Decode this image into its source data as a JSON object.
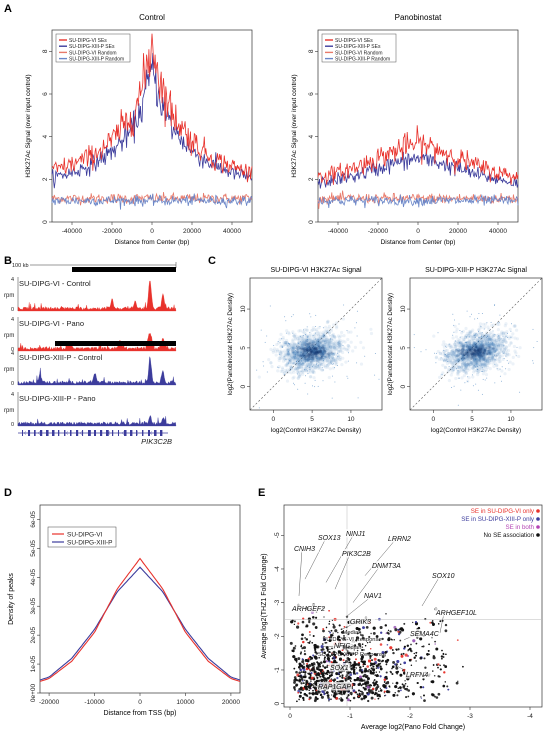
{
  "panel_labels": {
    "A": "A",
    "B": "B",
    "C": "C",
    "D": "D",
    "E": "E"
  },
  "colors": {
    "red": "#e8322c",
    "blue": "#3c3c9c",
    "lightred": "#e87a6a",
    "lightblue": "#6a86c8",
    "scatter": "#2a6fb5",
    "grey": "#c8c8c8"
  },
  "chart_data": [
    {
      "panel": "A-left",
      "type": "line",
      "title": "Control",
      "xlabel": "Distance from Center (bp)",
      "ylabel": "H3K27Ac Signal (over input control)",
      "xlim": [
        -50000,
        50000
      ],
      "ylim": [
        0,
        9
      ],
      "xticks": [
        "-40000",
        "-20000",
        "0",
        "20000",
        "40000"
      ],
      "yticks": [
        "0",
        "2",
        "4",
        "6",
        "8"
      ],
      "legend": [
        "SU-DIPG-VI SEs",
        "SU-DIPG-XIII-P SEs",
        "SU-DIPG-VI Random",
        "SU-DIPG-XIII-P Random"
      ],
      "legend_position": "top-left",
      "series": [
        {
          "name": "SU-DIPG-VI SEs",
          "x": [
            -50000,
            -40000,
            -30000,
            -20000,
            -10000,
            -5000,
            0,
            5000,
            10000,
            20000,
            30000,
            40000,
            50000
          ],
          "values": [
            2.4,
            2.7,
            3.1,
            3.8,
            5.0,
            6.2,
            8.4,
            6.3,
            5.1,
            3.8,
            3.0,
            2.6,
            2.3
          ]
        },
        {
          "name": "SU-DIPG-XIII-P SEs",
          "x": [
            -50000,
            -40000,
            -30000,
            -20000,
            -10000,
            -5000,
            0,
            5000,
            10000,
            20000,
            30000,
            40000,
            50000
          ],
          "values": [
            2.1,
            2.3,
            2.7,
            3.3,
            4.3,
            5.4,
            7.2,
            5.5,
            4.4,
            3.3,
            2.7,
            2.3,
            2.1
          ]
        },
        {
          "name": "SU-DIPG-VI Random",
          "x": [
            -50000,
            0,
            50000
          ],
          "values": [
            1.1,
            1.1,
            1.1
          ]
        },
        {
          "name": "SU-DIPG-XIII-P Random",
          "x": [
            -50000,
            0,
            50000
          ],
          "values": [
            1.0,
            1.0,
            1.0
          ]
        }
      ]
    },
    {
      "panel": "A-right",
      "type": "line",
      "title": "Panobinostat",
      "xlabel": "Distance from Center (bp)",
      "ylabel": "H3K27Ac Signal (over input control)",
      "xlim": [
        -50000,
        50000
      ],
      "ylim": [
        0,
        9
      ],
      "xticks": [
        "-40000",
        "-20000",
        "0",
        "20000",
        "40000"
      ],
      "yticks": [
        "0",
        "2",
        "4",
        "6",
        "8"
      ],
      "legend": [
        "SU-DIPG-VI SEs",
        "SU-DIPG-XIII-P SEs",
        "SU-DIPG-VI Random",
        "SU-DIPG-XIII-P Random"
      ],
      "legend_position": "top-left",
      "series": [
        {
          "name": "SU-DIPG-VI SEs",
          "x": [
            -50000,
            -40000,
            -30000,
            -20000,
            -10000,
            0,
            10000,
            20000,
            30000,
            40000,
            50000
          ],
          "values": [
            2.1,
            2.3,
            2.6,
            3.0,
            3.4,
            3.7,
            3.4,
            3.0,
            2.6,
            2.3,
            2.1
          ]
        },
        {
          "name": "SU-DIPG-XIII-P SEs",
          "x": [
            -50000,
            -40000,
            -30000,
            -20000,
            -10000,
            0,
            10000,
            20000,
            30000,
            40000,
            50000
          ],
          "values": [
            1.8,
            2.0,
            2.2,
            2.5,
            2.8,
            3.0,
            2.8,
            2.5,
            2.2,
            2.0,
            1.8
          ]
        },
        {
          "name": "SU-DIPG-VI Random",
          "x": [
            -50000,
            0,
            50000
          ],
          "values": [
            1.1,
            1.1,
            1.1
          ]
        },
        {
          "name": "SU-DIPG-XIII-P Random",
          "x": [
            -50000,
            0,
            50000
          ],
          "values": [
            1.0,
            1.0,
            1.0
          ]
        }
      ]
    },
    {
      "panel": "B",
      "type": "other",
      "scale_label": "100 kb",
      "tracks": [
        "SU-DIPG-VI - Control",
        "SU-DIPG-VI - Pano",
        "SU-DIPG-XIII-P - Control",
        "SU-DIPG-XIII-P - Pano"
      ],
      "track_ylabel": "rpm",
      "track_max": "4",
      "track_min": "0",
      "gene_label": "PIK3C2B"
    },
    {
      "panel": "C-left",
      "type": "scatter",
      "title": "SU-DIPG-VI H3K27Ac Signal",
      "xlabel": "log2(Control H3K27Ac Density)",
      "ylabel": "log2(Panobinostat H3K27Ac Density)",
      "xticks": [
        "0",
        "5",
        "10"
      ],
      "yticks": [
        "0",
        "5",
        "10"
      ],
      "xlim": [
        -3,
        14
      ],
      "ylim": [
        -3,
        14
      ],
      "center": [
        5,
        4.5
      ]
    },
    {
      "panel": "C-right",
      "type": "scatter",
      "title": "SU-DIPG-XIII-P H3K27Ac Signal",
      "xlabel": "log2(Control H3K27Ac Density)",
      "ylabel": "log2(Panobinostat H3K27Ac Density)",
      "xticks": [
        "0",
        "5",
        "10"
      ],
      "yticks": [
        "0",
        "5",
        "10"
      ],
      "xlim": [
        -3,
        14
      ],
      "ylim": [
        -3,
        14
      ],
      "center": [
        5.5,
        4.5
      ]
    },
    {
      "panel": "D",
      "type": "line",
      "xlabel": "Distance from TSS (bp)",
      "ylabel": "Density of peaks",
      "xlim": [
        -22000,
        22000
      ],
      "ylim": [
        0,
        6.5e-05
      ],
      "xticks": [
        "-20000",
        "-10000",
        "0",
        "10000",
        "20000"
      ],
      "yticks": [
        "0e+00",
        "1e-05",
        "2e-05",
        "3e-05",
        "4e-05",
        "5e-05",
        "6e-05"
      ],
      "legend_position": "top-left",
      "series": [
        {
          "name": "SU-DIPG-VI",
          "x": [
            -22000,
            -20000,
            -15000,
            -10000,
            -5000,
            0,
            5000,
            10000,
            15000,
            20000,
            22000
          ],
          "values": [
            4e-06,
            5e-06,
            1.1e-05,
            2.1e-05,
            3.6e-05,
            4.65e-05,
            3.6e-05,
            2.1e-05,
            1.1e-05,
            5e-06,
            4e-06
          ]
        },
        {
          "name": "SU-DIPG-XIII-P",
          "x": [
            -22000,
            -20000,
            -15000,
            -10000,
            -5000,
            0,
            5000,
            10000,
            15000,
            20000,
            22000
          ],
          "values": [
            4.5e-06,
            5.5e-06,
            1.2e-05,
            2.2e-05,
            3.5e-05,
            4.35e-05,
            3.5e-05,
            2.2e-05,
            1.2e-05,
            5.5e-06,
            4.5e-06
          ]
        }
      ]
    },
    {
      "panel": "E",
      "type": "scatter",
      "xlabel": "Average log2(Pano Fold Change)",
      "ylabel": "Average log2(THZ1 Fold Change)",
      "xticks": [
        "0",
        "-1",
        "-2",
        "-3",
        "-4"
      ],
      "yticks": [
        "0",
        "-1",
        "-2",
        "-3",
        "-4",
        "-5"
      ],
      "xlim": [
        0.1,
        -4.2
      ],
      "ylim": [
        0.1,
        -5.9
      ],
      "legend": [
        "SE in SU-DIPG-VI only",
        "SE in SU-DIPG-XIII-P only",
        "SE in both",
        "No SE association"
      ],
      "legend_position": "top-right",
      "gene_labels": [
        "SOX13",
        "NINJ1",
        "LRRN2",
        "CNIH3",
        "PIK3C2B",
        "DNMT3A",
        "SOX10",
        "NAV1",
        "ARHGEF2",
        "ARHGEF10L",
        "GRIK3",
        "SEMA4C",
        "NFIC",
        "SOX1",
        "LRFN4",
        "RAP1GAP"
      ],
      "annotations": [
        "Median",
        "SU-DIPG-VI Response",
        "Median",
        "SU-DIPG-XIII-P Response"
      ]
    }
  ]
}
